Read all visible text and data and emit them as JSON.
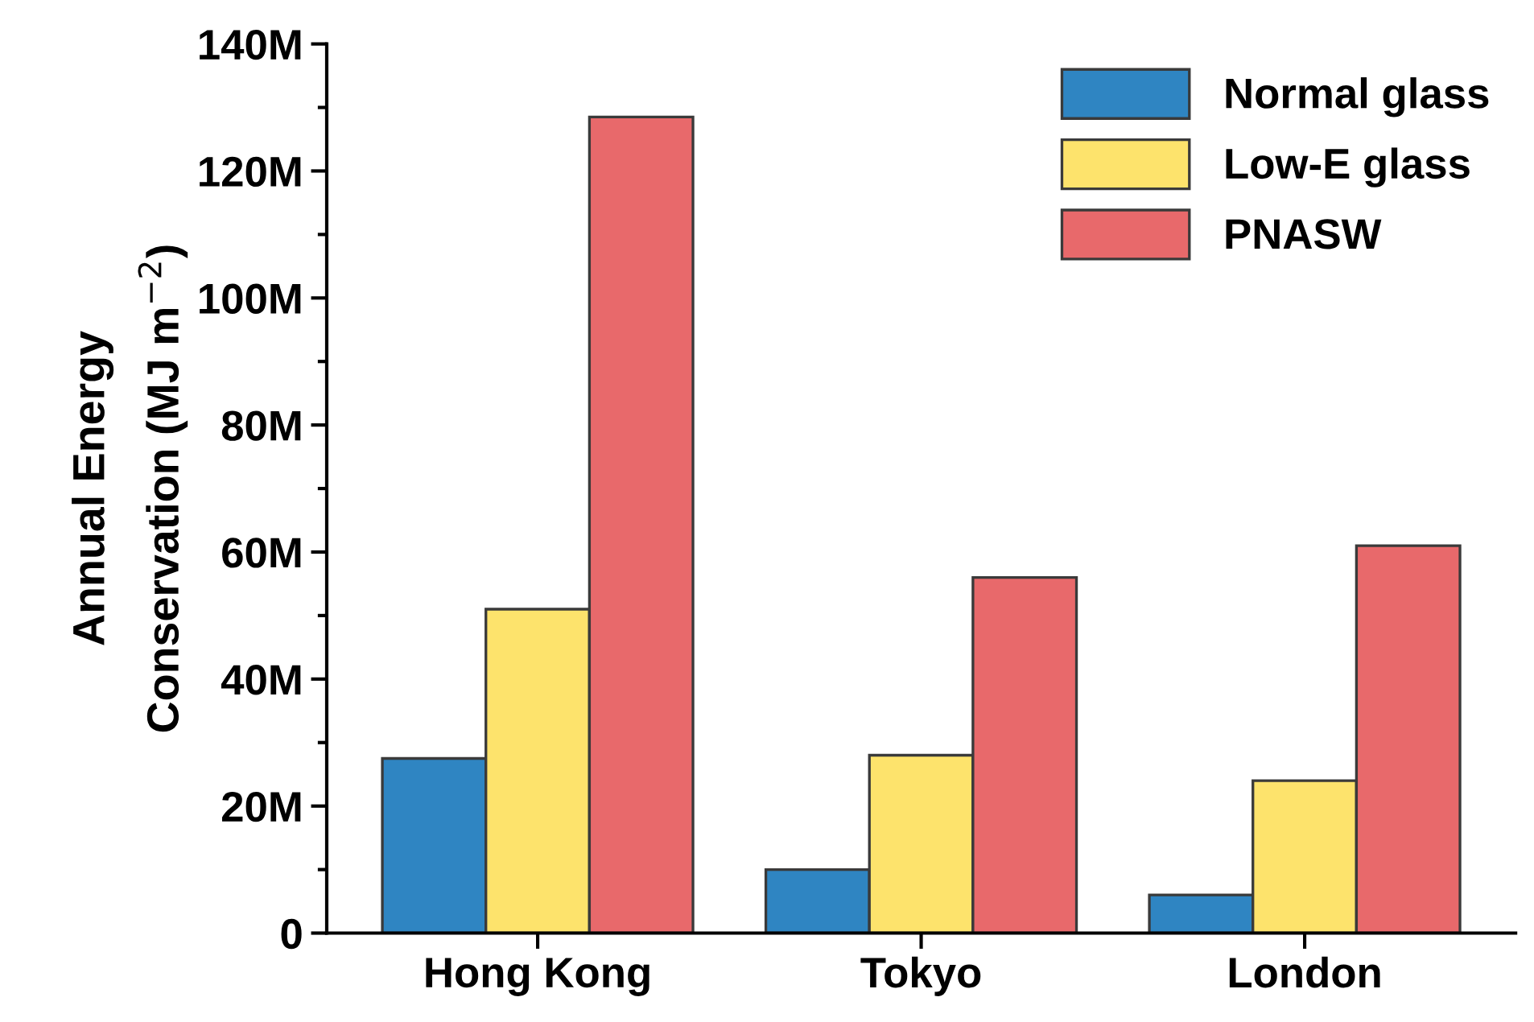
{
  "chart_data": {
    "type": "bar",
    "ylabel": "Annual Energy\nConservation (MJ m$^{−2}$)",
    "categories": [
      "Hong Kong",
      "Tokyo",
      "London"
    ],
    "series": [
      {
        "name": "Normal glass",
        "color": "#2f85c2",
        "values": [
          27500000,
          10000000,
          6000000
        ]
      },
      {
        "name": "Low-E glass",
        "color": "#fde36c",
        "values": [
          51000000,
          28000000,
          24000000
        ]
      },
      {
        "name": "PNASW",
        "color": "#e8696b",
        "values": [
          128500000,
          56000000,
          61000000
        ]
      }
    ],
    "ylim": [
      0,
      140000000
    ],
    "yticks": [
      0,
      {
        "value": 20000000,
        "label": "20M"
      },
      {
        "value": 40000000,
        "label": "40M"
      },
      {
        "value": 60000000,
        "label": "60M"
      },
      {
        "value": 80000000,
        "label": "80M"
      },
      {
        "value": 100000000,
        "label": "100M"
      },
      {
        "value": 120000000,
        "label": "120M"
      },
      {
        "value": 140000000,
        "label": "140M"
      }
    ],
    "legend": "top right",
    "grid": false
  }
}
